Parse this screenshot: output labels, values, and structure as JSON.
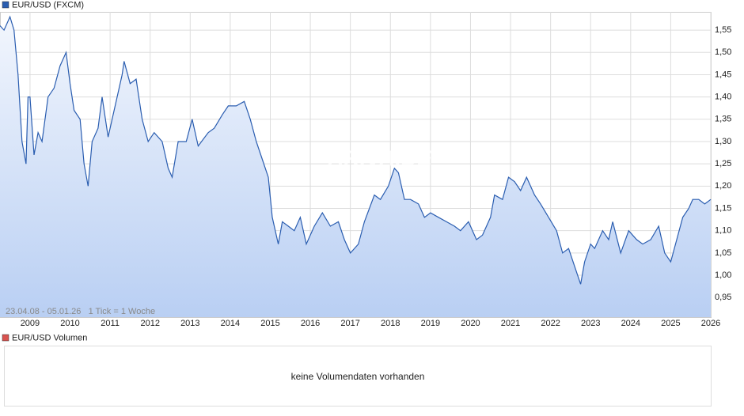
{
  "chart_data": {
    "type": "area-line",
    "note": "23.04.08 - 05.01.26   1 Tick = 1 Woche",
    "watermark": "ARIVA.DE",
    "series": [
      {
        "name": "EUR/USD (FXCM)",
        "color": "#2a5db0",
        "x": [
          2008.25,
          2008.35,
          2008.5,
          2008.6,
          2008.7,
          2008.8,
          2008.9,
          2008.95,
          2009.0,
          2009.1,
          2009.2,
          2009.3,
          2009.45,
          2009.6,
          2009.75,
          2009.9,
          2010.0,
          2010.1,
          2010.25,
          2010.35,
          2010.45,
          2010.55,
          2010.7,
          2010.8,
          2010.95,
          2011.1,
          2011.3,
          2011.35,
          2011.5,
          2011.65,
          2011.8,
          2011.95,
          2012.1,
          2012.3,
          2012.45,
          2012.55,
          2012.7,
          2012.9,
          2013.05,
          2013.2,
          2013.45,
          2013.6,
          2013.8,
          2013.95,
          2014.15,
          2014.35,
          2014.5,
          2014.65,
          2014.8,
          2014.95,
          2015.05,
          2015.2,
          2015.3,
          2015.45,
          2015.6,
          2015.75,
          2015.9,
          2016.1,
          2016.3,
          2016.5,
          2016.7,
          2016.85,
          2017.0,
          2017.2,
          2017.35,
          2017.6,
          2017.75,
          2017.95,
          2018.1,
          2018.2,
          2018.35,
          2018.5,
          2018.7,
          2018.85,
          2019.0,
          2019.2,
          2019.4,
          2019.6,
          2019.75,
          2019.95,
          2020.15,
          2020.3,
          2020.5,
          2020.6,
          2020.8,
          2020.95,
          2021.1,
          2021.25,
          2021.4,
          2021.6,
          2021.75,
          2021.95,
          2022.15,
          2022.3,
          2022.45,
          2022.6,
          2022.75,
          2022.85,
          2023.0,
          2023.1,
          2023.3,
          2023.45,
          2023.55,
          2023.75,
          2023.95,
          2024.15,
          2024.3,
          2024.5,
          2024.7,
          2024.85,
          2025.0,
          2025.15,
          2025.3,
          2025.45,
          2025.55,
          2025.7,
          2025.85,
          2026.0
        ],
        "values": [
          1.56,
          1.55,
          1.58,
          1.55,
          1.45,
          1.3,
          1.25,
          1.4,
          1.4,
          1.27,
          1.32,
          1.3,
          1.4,
          1.42,
          1.47,
          1.5,
          1.43,
          1.37,
          1.35,
          1.25,
          1.2,
          1.3,
          1.33,
          1.4,
          1.31,
          1.37,
          1.45,
          1.48,
          1.43,
          1.44,
          1.35,
          1.3,
          1.32,
          1.3,
          1.24,
          1.22,
          1.3,
          1.3,
          1.35,
          1.29,
          1.32,
          1.33,
          1.36,
          1.38,
          1.38,
          1.39,
          1.35,
          1.3,
          1.26,
          1.22,
          1.13,
          1.07,
          1.12,
          1.11,
          1.1,
          1.13,
          1.07,
          1.11,
          1.14,
          1.11,
          1.12,
          1.08,
          1.05,
          1.07,
          1.12,
          1.18,
          1.17,
          1.2,
          1.24,
          1.23,
          1.17,
          1.17,
          1.16,
          1.13,
          1.14,
          1.13,
          1.12,
          1.11,
          1.1,
          1.12,
          1.08,
          1.09,
          1.13,
          1.18,
          1.17,
          1.22,
          1.21,
          1.19,
          1.22,
          1.18,
          1.16,
          1.13,
          1.1,
          1.05,
          1.06,
          1.02,
          0.98,
          1.03,
          1.07,
          1.06,
          1.1,
          1.08,
          1.12,
          1.05,
          1.1,
          1.08,
          1.07,
          1.08,
          1.11,
          1.05,
          1.03,
          1.08,
          1.13,
          1.15,
          1.17,
          1.17,
          1.16,
          1.17
        ]
      }
    ],
    "xlim": [
      2008.25,
      2026.0
    ],
    "xticks": [
      2009,
      2010,
      2011,
      2012,
      2013,
      2014,
      2015,
      2016,
      2017,
      2018,
      2019,
      2020,
      2021,
      2022,
      2023,
      2024,
      2025,
      2026
    ],
    "ylim": [
      0.906,
      1.591
    ],
    "yticks": [
      {
        "value": 0.95,
        "label": "0,95"
      },
      {
        "value": 1.0,
        "label": "1,00"
      },
      {
        "value": 1.05,
        "label": "1,05"
      },
      {
        "value": 1.1,
        "label": "1,10"
      },
      {
        "value": 1.15,
        "label": "1,15"
      },
      {
        "value": 1.2,
        "label": "1,20"
      },
      {
        "value": 1.25,
        "label": "1,25"
      },
      {
        "value": 1.3,
        "label": "1,30"
      },
      {
        "value": 1.35,
        "label": "1,35"
      },
      {
        "value": 1.4,
        "label": "1,40"
      },
      {
        "value": 1.45,
        "label": "1,45"
      },
      {
        "value": 1.5,
        "label": "1,50"
      },
      {
        "value": 1.55,
        "label": "1,55"
      }
    ],
    "grid": true
  },
  "volume_panel": {
    "legend": "EUR/USD Volumen",
    "color": "#d9534f",
    "message": "keine Volumendaten vorhanden"
  }
}
